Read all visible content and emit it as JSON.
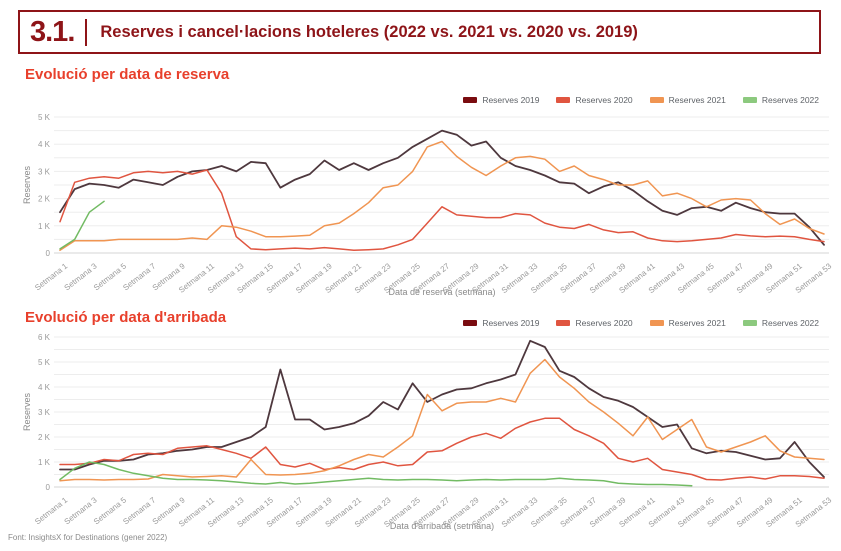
{
  "header": {
    "number": "3.1.",
    "title": "Reserves i cancel·lacions hoteleres (2022 vs. 2021 vs. 2020 vs. 2019)"
  },
  "footer": {
    "source": "Font: InsightsX for Destinations (gener 2022)"
  },
  "colors": {
    "header_red": "#8e1418",
    "section_red": "#e8402c",
    "axis_text": "#9a9a9a",
    "axis_title_text": "#8a8a8a",
    "grid": "#ededed",
    "grid_zero": "#d4d4d4"
  },
  "chart_data": [
    {
      "type": "line",
      "title": "Evolució per data de reserva",
      "xlabel": "Data de reserva (setmana)",
      "ylabel": "Reserves",
      "ylim": [
        0,
        5000
      ],
      "ytick_labels": [
        "0",
        "1 K",
        "2 K",
        "3 K",
        "4 K",
        "5 K"
      ],
      "grid": true,
      "legend_position": "top-right",
      "xtick_labels": [
        "Setmana 1",
        "Setmana 3",
        "Setmana 5",
        "Setmana 7",
        "Setmana 9",
        "Setmana 11",
        "Setmana 13",
        "Setmana 15",
        "Setmana 17",
        "Setmana 19",
        "Setmana 21",
        "Setmana 23",
        "Setmana 25",
        "Setmana 27",
        "Setmana 29",
        "Setmana 31",
        "Setmana 33",
        "Setmana 35",
        "Setmana 37",
        "Setmana 39",
        "Setmana 41",
        "Setmana 43",
        "Setmana 45",
        "Setmana 47",
        "Setmana 49",
        "Setmana 51",
        "Setmana 53"
      ],
      "x_weeks": 53,
      "series": [
        {
          "name": "Reserves 2019",
          "color": "#4e383e",
          "legend_color": "#7a0c10",
          "values": [
            1500,
            2350,
            2550,
            2500,
            2400,
            2700,
            2600,
            2500,
            2800,
            3000,
            3050,
            3200,
            3000,
            3350,
            3300,
            2400,
            2700,
            2900,
            3400,
            3050,
            3300,
            3050,
            3300,
            3500,
            3900,
            4200,
            4500,
            4350,
            3950,
            4100,
            3500,
            3200,
            3050,
            2850,
            2600,
            2550,
            2200,
            2450,
            2600,
            2300,
            1900,
            1550,
            1400,
            1650,
            1700,
            1550,
            1850,
            1650,
            1500,
            1450,
            1450,
            950,
            300
          ]
        },
        {
          "name": "Reserves 2020",
          "color": "#e05540",
          "values": [
            1150,
            2600,
            2750,
            2800,
            2750,
            2950,
            3000,
            2950,
            3000,
            2900,
            3050,
            2200,
            600,
            150,
            120,
            150,
            180,
            150,
            200,
            150,
            100,
            120,
            150,
            300,
            500,
            1100,
            1700,
            1400,
            1350,
            1300,
            1300,
            1450,
            1400,
            1100,
            950,
            900,
            1050,
            850,
            750,
            780,
            550,
            450,
            420,
            450,
            500,
            550,
            680,
            630,
            600,
            620,
            600,
            500,
            420
          ]
        },
        {
          "name": "Reserves 2021",
          "color": "#f09552",
          "values": [
            100,
            450,
            450,
            450,
            500,
            500,
            500,
            500,
            500,
            550,
            500,
            1000,
            950,
            800,
            600,
            600,
            620,
            650,
            1000,
            1100,
            1450,
            1850,
            2400,
            2500,
            3000,
            3900,
            4100,
            3550,
            3150,
            2850,
            3200,
            3500,
            3550,
            3450,
            3000,
            3200,
            2850,
            2700,
            2500,
            2500,
            2650,
            2100,
            2200,
            2000,
            1700,
            1950,
            2000,
            1950,
            1450,
            1050,
            1250,
            900,
            700
          ]
        },
        {
          "name": "Reserves 2022",
          "color": "#72bb63",
          "legend_color": "#8cc97e",
          "values": [
            150,
            500,
            1500,
            1900
          ]
        }
      ]
    },
    {
      "type": "line",
      "title": "Evolució per data d'arribada",
      "xlabel": "Data d'arribada (setmana)",
      "ylabel": "Reserves",
      "ylim": [
        0,
        6000
      ],
      "ytick_labels": [
        "0",
        "1 K",
        "2 K",
        "3 K",
        "4 K",
        "5 K",
        "6 K"
      ],
      "grid": true,
      "legend_position": "top-right",
      "xtick_labels": [
        "Setmana 1",
        "Setmana 3",
        "Setmana 5",
        "Setmana 7",
        "Setmana 9",
        "Setmana 11",
        "Setmana 13",
        "Setmana 15",
        "Setmana 17",
        "Setmana 19",
        "Setmana 21",
        "Setmana 23",
        "Setmana 25",
        "Setmana 27",
        "Setmana 29",
        "Setmana 31",
        "Setmana 33",
        "Setmana 35",
        "Setmana 37",
        "Setmana 39",
        "Setmana 41",
        "Setmana 43",
        "Setmana 45",
        "Setmana 47",
        "Setmana 49",
        "Setmana 51",
        "Setmana 53"
      ],
      "x_weeks": 53,
      "series": [
        {
          "name": "Reserves 2019",
          "color": "#4e383e",
          "legend_color": "#7a0c10",
          "values": [
            700,
            700,
            900,
            1050,
            1050,
            1100,
            1300,
            1350,
            1450,
            1500,
            1600,
            1600,
            1800,
            2000,
            2400,
            4700,
            2700,
            2700,
            2300,
            2400,
            2550,
            2850,
            3400,
            3100,
            4150,
            3400,
            3700,
            3900,
            3950,
            4150,
            4300,
            4500,
            5850,
            5600,
            4650,
            4400,
            3950,
            3600,
            3450,
            3200,
            2800,
            2400,
            2500,
            1550,
            1350,
            1450,
            1400,
            1250,
            1100,
            1150,
            1800,
            1000,
            400
          ]
        },
        {
          "name": "Reserves 2020",
          "color": "#e05540",
          "values": [
            900,
            900,
            950,
            1100,
            1050,
            1300,
            1350,
            1300,
            1550,
            1600,
            1650,
            1500,
            1350,
            1150,
            1600,
            900,
            800,
            950,
            700,
            780,
            700,
            900,
            1000,
            850,
            900,
            1400,
            1450,
            1750,
            2000,
            2150,
            1950,
            2350,
            2600,
            2750,
            2750,
            2300,
            2050,
            1750,
            1150,
            1000,
            1150,
            700,
            600,
            500,
            300,
            280,
            350,
            400,
            320,
            450,
            450,
            420,
            350
          ]
        },
        {
          "name": "Reserves 2021",
          "color": "#f09552",
          "values": [
            250,
            300,
            300,
            280,
            300,
            300,
            320,
            500,
            450,
            400,
            420,
            450,
            400,
            1100,
            500,
            480,
            500,
            550,
            650,
            850,
            1100,
            1300,
            1200,
            1600,
            2050,
            3700,
            3050,
            3350,
            3400,
            3400,
            3550,
            3400,
            4550,
            5100,
            4400,
            3950,
            3400,
            3000,
            2550,
            2050,
            2800,
            1900,
            2300,
            2700,
            1600,
            1400,
            1600,
            1800,
            2050,
            1450,
            1200,
            1150,
            1100
          ]
        },
        {
          "name": "Reserves 2022",
          "color": "#72bb63",
          "legend_color": "#8cc97e",
          "values": [
            300,
            750,
            1000,
            900,
            700,
            550,
            450,
            350,
            300,
            300,
            280,
            250,
            200,
            150,
            120,
            180,
            120,
            150,
            200,
            250,
            300,
            350,
            300,
            280,
            300,
            300,
            280,
            250,
            280,
            300,
            280,
            300,
            300,
            300,
            350,
            300,
            280,
            250,
            150,
            120,
            100,
            100,
            80,
            50
          ]
        }
      ]
    }
  ]
}
